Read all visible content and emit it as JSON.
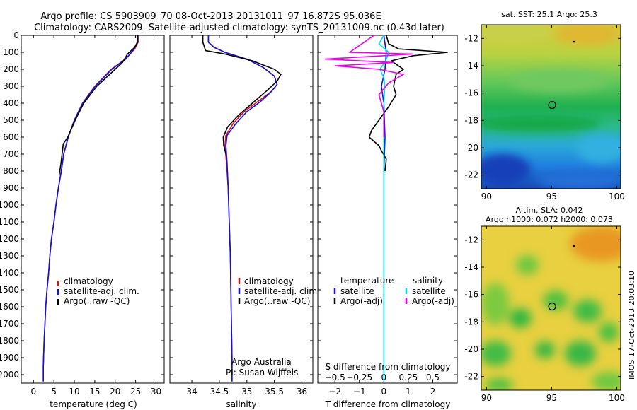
{
  "header": {
    "line1": "Argo profile: CS 5903909_70 08-Oct-2013 20131011_97 16.872S 95.036E",
    "line2": "Climatology: CARS2009. Satellite-adjusted climatology: synTS_20131009.nc (0.43d later)"
  },
  "side_text": "IMOS 17-Oct-2013 20:03:10",
  "colors": {
    "climatology": "#e01010",
    "satellite": "#1010e0",
    "argo": "#000000",
    "sal_satellite": "#00e0e0",
    "sal_argo": "#ee00ee"
  },
  "chart_data": [
    {
      "id": "temperature",
      "type": "line",
      "xlabel": "temperature (deg C)",
      "ylabel": "",
      "xlim": [
        -3,
        32
      ],
      "ylim": [
        0,
        2050
      ],
      "xticks": [
        0,
        5,
        10,
        15,
        20,
        25,
        30
      ],
      "xtick_labels": [
        "0",
        "5",
        "10",
        "15",
        "20",
        "25",
        "30"
      ],
      "yticks": [
        0,
        100,
        200,
        300,
        400,
        500,
        600,
        700,
        800,
        900,
        1000,
        1100,
        1200,
        1300,
        1400,
        1500,
        1600,
        1700,
        1800,
        1900,
        2000
      ],
      "ytick_labels": [
        "0",
        "100",
        "200",
        "300",
        "400",
        "500",
        "600",
        "700",
        "800",
        "900",
        "1000",
        "1100",
        "1200",
        "1300",
        "1400",
        "1500",
        "1600",
        "1700",
        "1800",
        "1900",
        "2000"
      ],
      "legend": [
        "climatology",
        "satellite-adj. clim.",
        "Argo(..raw -QC)"
      ],
      "series": [
        {
          "name": "climatology",
          "color_key": "climatology",
          "x": [
            25.6,
            25.6,
            24.8,
            22.5,
            19.0,
            15.0,
            12.0,
            10.0,
            8.5,
            7.4,
            6.8,
            6.1,
            5.5,
            5.0,
            4.4,
            4.0,
            3.7,
            3.3,
            3.0,
            2.8,
            2.6,
            2.4,
            2.4
          ],
          "y": [
            0,
            40,
            80,
            140,
            200,
            300,
            400,
            500,
            600,
            700,
            800,
            900,
            1000,
            1100,
            1200,
            1300,
            1400,
            1500,
            1600,
            1700,
            1800,
            1950,
            2040
          ]
        },
        {
          "name": "satellite-adj. clim.",
          "color_key": "satellite",
          "x": [
            25.4,
            25.4,
            24.6,
            22.6,
            19.2,
            15.1,
            12.1,
            10.0,
            8.5,
            7.4,
            6.8,
            6.1,
            5.5,
            5.0,
            4.4,
            4.0,
            3.7,
            3.3,
            3.0,
            2.8,
            2.6,
            2.4,
            2.4
          ],
          "y": [
            0,
            40,
            80,
            140,
            200,
            300,
            400,
            500,
            600,
            700,
            800,
            900,
            1000,
            1100,
            1200,
            1300,
            1400,
            1500,
            1600,
            1700,
            1800,
            1950,
            2040
          ]
        },
        {
          "name": "Argo(..raw -QC)",
          "color_key": "argo",
          "x": [
            25.5,
            25.5,
            24.8,
            23.0,
            21.8,
            20.0,
            18.2,
            15.5,
            12.3,
            10.2,
            8.4,
            7.3,
            7.0,
            6.7,
            6.3
          ],
          "y": [
            0,
            40,
            70,
            110,
            160,
            200,
            240,
            300,
            400,
            500,
            600,
            640,
            700,
            760,
            820
          ]
        }
      ],
      "annotations": []
    },
    {
      "id": "salinity",
      "type": "line",
      "xlabel": "salinity",
      "ylabel": "",
      "xlim": [
        33.6,
        36.2
      ],
      "ylim": [
        0,
        2050
      ],
      "xticks": [
        34,
        34.5,
        35,
        35.5,
        36
      ],
      "xtick_labels": [
        "34",
        "34.5",
        "35",
        "35.5",
        "36"
      ],
      "legend": [
        "climatology",
        "satellite-adj. clim.",
        "Argo(..raw -QC)"
      ],
      "series": [
        {
          "name": "climatology",
          "color_key": "climatology",
          "x": [
            34.3,
            34.3,
            34.4,
            34.6,
            35.0,
            35.3,
            35.5,
            35.55,
            35.45,
            35.2,
            34.95,
            34.75,
            34.62,
            34.6,
            34.63,
            34.66,
            34.68,
            34.7,
            34.71,
            34.72,
            34.73,
            34.73
          ],
          "y": [
            0,
            40,
            70,
            100,
            140,
            190,
            240,
            290,
            330,
            390,
            450,
            520,
            590,
            650,
            750,
            900,
            1100,
            1300,
            1500,
            1700,
            1900,
            2040
          ]
        },
        {
          "name": "satellite-adj. clim.",
          "color_key": "satellite",
          "x": [
            34.3,
            34.3,
            34.4,
            34.6,
            35.0,
            35.3,
            35.5,
            35.55,
            35.45,
            35.25,
            35.0,
            34.8,
            34.64,
            34.62,
            34.64,
            34.66,
            34.68,
            34.7,
            34.71,
            34.72,
            34.73,
            34.73
          ],
          "y": [
            0,
            40,
            70,
            100,
            140,
            190,
            240,
            290,
            330,
            390,
            450,
            520,
            590,
            650,
            750,
            900,
            1100,
            1300,
            1500,
            1700,
            1900,
            2040
          ]
        },
        {
          "name": "Argo(..raw -QC)",
          "color_key": "argo",
          "x": [
            34.2,
            34.2,
            34.25,
            34.6,
            35.1,
            35.5,
            35.62,
            35.55,
            35.35,
            35.1,
            34.85,
            34.65,
            34.57,
            34.58,
            34.62
          ],
          "y": [
            0,
            40,
            90,
            110,
            150,
            200,
            230,
            270,
            330,
            400,
            470,
            540,
            600,
            650,
            700
          ]
        }
      ],
      "annotations": [
        "Argo Australia",
        "PI: Susan Wijffels"
      ]
    },
    {
      "id": "difference",
      "type": "line",
      "xlabel": "T difference from climatology",
      "ylabel": "",
      "top_label": "S difference from climatology",
      "xlim": [
        -2.7,
        3.0
      ],
      "ylim": [
        0,
        2050
      ],
      "xticks": [
        -2,
        -1,
        0,
        1,
        2
      ],
      "xtick_labels": [
        "−2",
        "−1",
        "0",
        "1",
        "2"
      ],
      "sticks": [
        -0.5,
        -0.25,
        0,
        0.25,
        0.5
      ],
      "stick_labels": [
        "−0.5",
        "−0.25",
        "0",
        "0.25",
        "0.5"
      ],
      "slim": [
        -0.675,
        0.75
      ],
      "legend": {
        "temperature_title": "temperature",
        "salinity_title": "salinity",
        "items": [
          "satellite",
          "Argo(-adj)",
          "satellite",
          "Argo(-adj)"
        ]
      },
      "series": [
        {
          "name": "temperature satellite",
          "color_key": "satellite",
          "axis": "T",
          "x": [
            0.0,
            0.1,
            0.05,
            -0.1,
            0.0,
            0.05,
            0.0,
            0.0,
            0.0,
            0.0
          ],
          "y": [
            0,
            100,
            200,
            300,
            400,
            600,
            800,
            1200,
            1600,
            2040
          ]
        },
        {
          "name": "temperature Argo(-adj)",
          "color_key": "argo",
          "axis": "T",
          "x": [
            0.1,
            0.2,
            0.6,
            2.6,
            1.2,
            0.3,
            0.8,
            0.5,
            0.4,
            0.5,
            0.2,
            -0.2,
            -0.5,
            -0.6,
            -0.2,
            -0.1,
            0.1,
            0.05
          ],
          "y": [
            0,
            50,
            80,
            100,
            120,
            150,
            200,
            230,
            300,
            350,
            420,
            500,
            560,
            600,
            650,
            680,
            730,
            800
          ]
        },
        {
          "name": "salinity satellite",
          "color_key": "sal_satellite",
          "axis": "S",
          "x": [
            0.0,
            -0.05,
            0.05,
            0.02,
            -0.04,
            0.0,
            0.01,
            0.0,
            0.0,
            0.0,
            0.0
          ],
          "y": [
            0,
            50,
            100,
            150,
            200,
            250,
            300,
            400,
            800,
            1400,
            2040
          ]
        },
        {
          "name": "salinity Argo(-adj)",
          "color_key": "sal_argo",
          "axis": "S",
          "x": [
            -0.1,
            -0.35,
            0.3,
            -0.6,
            0.1,
            -0.5,
            -0.05,
            0.2,
            0.05,
            -0.05,
            0.0,
            0.0
          ],
          "y": [
            0,
            100,
            110,
            140,
            160,
            180,
            200,
            230,
            280,
            350,
            450,
            600
          ]
        }
      ],
      "annotations": []
    },
    {
      "id": "sst_map",
      "type": "heatmap",
      "title": "sat. SST: 25.1 Argo: 25.3",
      "xlim": [
        89.6,
        100.3
      ],
      "ylim": [
        -23,
        -11
      ],
      "xticks": [
        90,
        95,
        100
      ],
      "xtick_labels": [
        "90",
        "95",
        "100"
      ],
      "yticks": [
        -12,
        -14,
        -16,
        -18,
        -20,
        -22
      ],
      "ytick_labels": [
        "-12",
        "-14",
        "-16",
        "-18",
        "-20",
        "-22"
      ],
      "marker": {
        "lon": 95.036,
        "lat": -16.872
      }
    },
    {
      "id": "sla_map",
      "type": "heatmap",
      "title": "Altim. SLA: 0.042",
      "subtitle": "Argo h1000: 0.072 h2000: 0.073",
      "xlim": [
        89.6,
        100.3
      ],
      "ylim": [
        -23,
        -11
      ],
      "xticks": [
        90,
        95,
        100
      ],
      "xtick_labels": [
        "90",
        "95",
        "100"
      ],
      "yticks": [
        -12,
        -14,
        -16,
        -18,
        -20,
        -22
      ],
      "ytick_labels": [
        "-12",
        "-14",
        "-16",
        "-18",
        "-20",
        "-22"
      ],
      "marker": {
        "lon": 95.036,
        "lat": -16.872
      }
    }
  ]
}
